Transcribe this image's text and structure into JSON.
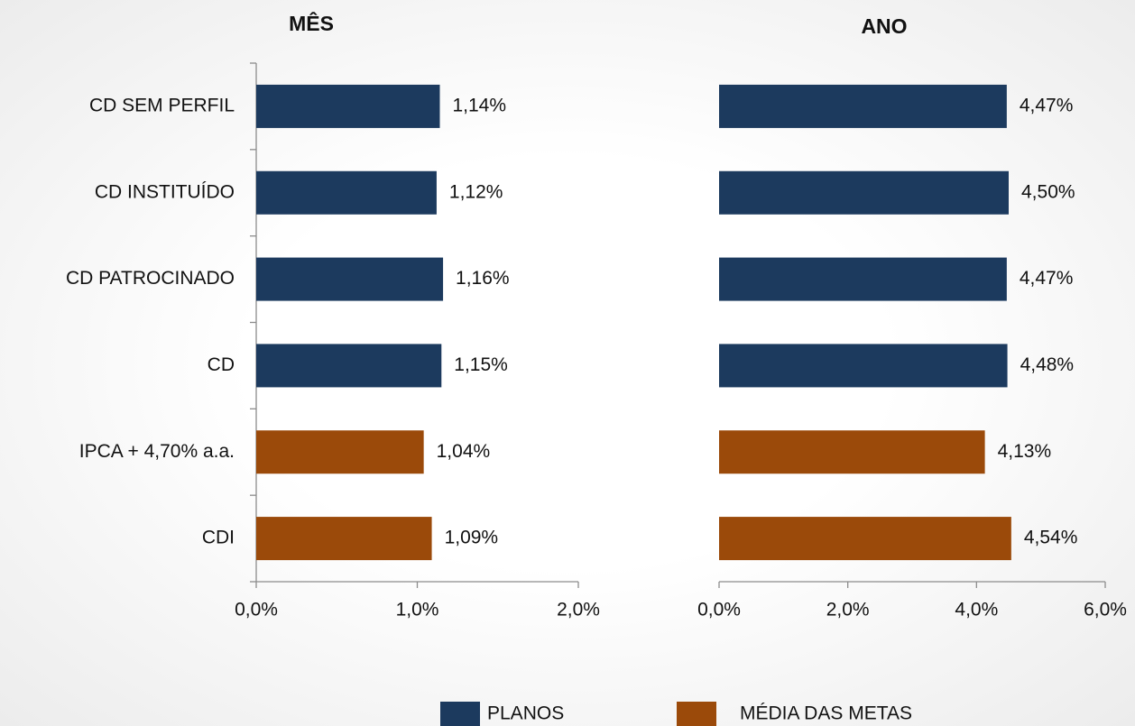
{
  "chart_data": [
    {
      "type": "bar",
      "orientation": "horizontal",
      "title": "MÊS",
      "categories": [
        "CD SEM PERFIL",
        "CD INSTITUÍDO",
        "CD PATROCINADO",
        "CD",
        "IPCA + 4,70% a.a.",
        "CDI"
      ],
      "values": [
        1.14,
        1.12,
        1.16,
        1.15,
        1.04,
        1.09
      ],
      "value_labels": [
        "1,14%",
        "1,12%",
        "1,16%",
        "1,15%",
        "1,04%",
        "1,09%"
      ],
      "colors": [
        "#1c3a5e",
        "#1c3a5e",
        "#1c3a5e",
        "#1c3a5e",
        "#9b4a0a",
        "#9b4a0a"
      ],
      "xlim": [
        0,
        2
      ],
      "xticks": [
        {
          "value": 0,
          "label": "0,0%"
        },
        {
          "value": 1,
          "label": "1,0%"
        },
        {
          "value": 2,
          "label": "2,0%"
        }
      ]
    },
    {
      "type": "bar",
      "orientation": "horizontal",
      "title": "ANO",
      "values": [
        4.47,
        4.5,
        4.47,
        4.48,
        4.13,
        4.54
      ],
      "value_labels": [
        "4,47%",
        "4,50%",
        "4,47%",
        "4,48%",
        "4,13%",
        "4,54%"
      ],
      "colors": [
        "#1c3a5e",
        "#1c3a5e",
        "#1c3a5e",
        "#1c3a5e",
        "#9b4a0a",
        "#9b4a0a"
      ],
      "xlim": [
        0,
        6
      ],
      "xticks": [
        {
          "value": 0,
          "label": "0,0%"
        },
        {
          "value": 2,
          "label": "2,0%"
        },
        {
          "value": 4,
          "label": "4,0%"
        },
        {
          "value": 6,
          "label": "6,0%"
        }
      ]
    }
  ],
  "legend": [
    {
      "name": "PLANOS",
      "color": "#1c3a5e"
    },
    {
      "name": "MÉDIA DAS METAS",
      "color": "#9b4a0a"
    }
  ]
}
